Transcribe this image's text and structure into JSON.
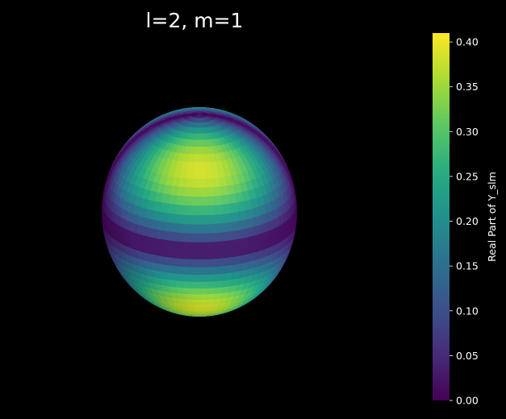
{
  "chart_data": {
    "type": "heatmap",
    "subtype": "sphere-surface",
    "title": "l=2, m=1",
    "colorbar": {
      "label": "Real Part of Y_slm",
      "range": [
        0.0,
        0.41
      ],
      "colormap": "viridis",
      "ticks": [
        0.0,
        0.05,
        0.1,
        0.15,
        0.2,
        0.25,
        0.3,
        0.35,
        0.4
      ],
      "tick_labels": [
        "0.00",
        "0.05",
        "0.10",
        "0.15",
        "0.20",
        "0.25",
        "0.30",
        "0.35",
        "0.40"
      ]
    },
    "grid": false,
    "axes_visible": false,
    "background": "#000000",
    "text_color": "#ffffff"
  }
}
